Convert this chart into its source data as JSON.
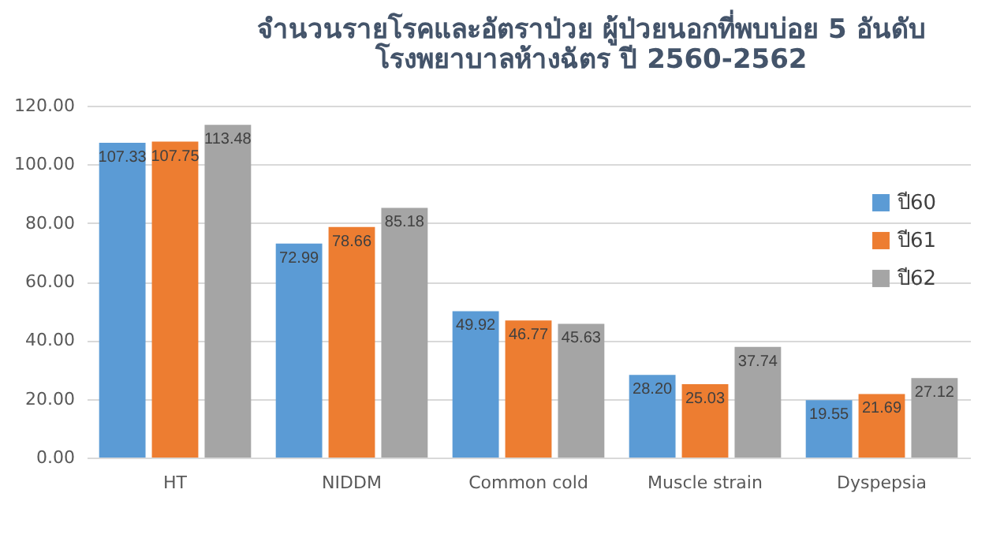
{
  "chart_data": {
    "type": "bar",
    "title": [
      "จำนวนรายโรคและอัตราป่วย ผู้ป่วยนอกที่พบบ่อย 5 อันดับ",
      "โรงพยาบาลห้างฉัตร ปี 2560-2562"
    ],
    "categories": [
      "HT",
      "NIDDM",
      "Common cold",
      "Muscle strain",
      "Dyspepsia"
    ],
    "series": [
      {
        "name": "ปี60",
        "color": "#5b9bd5",
        "values": [
          107.33,
          72.99,
          49.92,
          28.2,
          19.55
        ],
        "value_labels": [
          "107.33",
          "72.99",
          "49.92",
          "28.20",
          "19.55"
        ]
      },
      {
        "name": "ปี61",
        "color": "#ed7d31",
        "values": [
          107.75,
          78.66,
          46.77,
          25.03,
          21.69
        ],
        "value_labels": [
          "107.75",
          "78.66",
          "46.77",
          "25.03",
          "21.69"
        ]
      },
      {
        "name": "ปี62",
        "color": "#a5a5a5",
        "values": [
          113.48,
          85.18,
          45.63,
          37.74,
          27.12
        ],
        "value_labels": [
          "113.48",
          "85.18",
          "45.63",
          "37.74",
          "27.12"
        ]
      }
    ],
    "ylim": [
      0,
      120
    ],
    "yticks": [
      {
        "value": 0,
        "label": "0.00"
      },
      {
        "value": 20,
        "label": "20.00"
      },
      {
        "value": 40,
        "label": "40.00"
      },
      {
        "value": 60,
        "label": "60.00"
      },
      {
        "value": 80,
        "label": "80.00"
      },
      {
        "value": 100,
        "label": "100.00"
      },
      {
        "value": 120,
        "label": "120.00"
      }
    ],
    "grid": "y",
    "legend": "right"
  }
}
